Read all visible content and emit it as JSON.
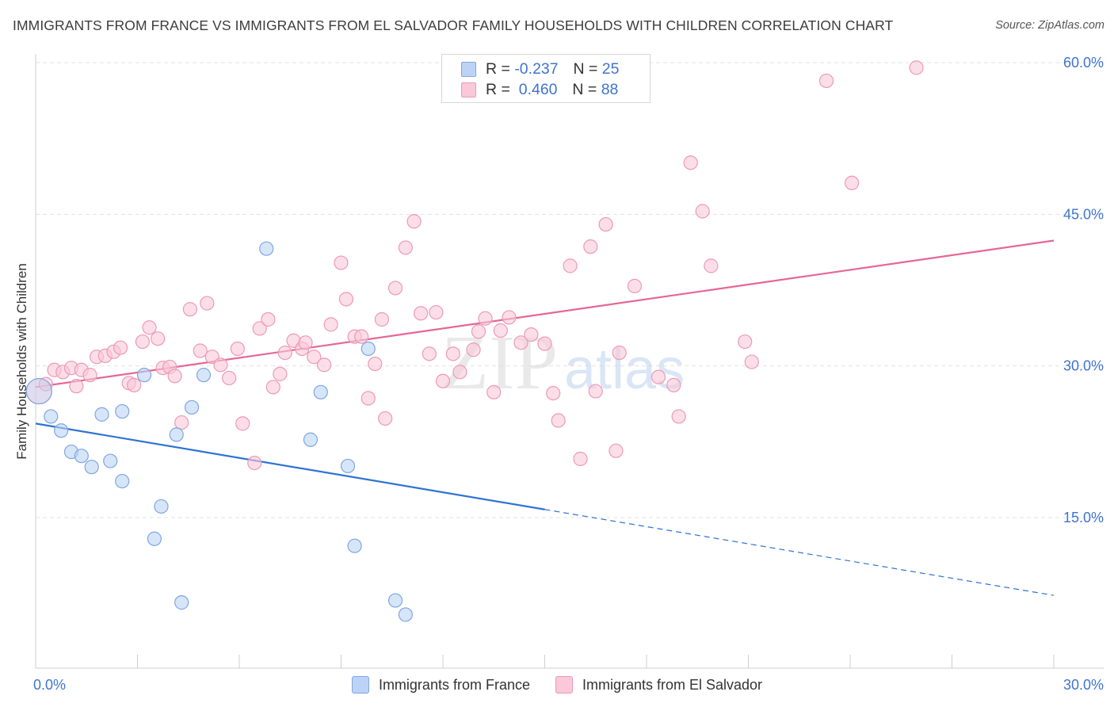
{
  "title": "IMMIGRANTS FROM FRANCE VS IMMIGRANTS FROM EL SALVADOR FAMILY HOUSEHOLDS WITH CHILDREN CORRELATION CHART",
  "source": "Source: ZipAtlas.com",
  "legend_top": [
    {
      "r_label": "R =",
      "r_value": "-0.237",
      "n_label": "N =",
      "n_value": "25"
    },
    {
      "r_label": "R =",
      "r_value": " 0.460",
      "n_label": "N =",
      "n_value": "88"
    }
  ],
  "colors": {
    "france_fill": "#bdd3f5",
    "france_stroke": "#7ea7e0",
    "france_line": "#2f72d4",
    "elsalvador_fill": "#fac8d8",
    "elsalvador_stroke": "#ec9ab5",
    "elsalvador_line": "#e46795",
    "tick_label": "#3f74d0",
    "grid": "#e2e2e2"
  },
  "chart_data": {
    "type": "scatter",
    "title": "IMMIGRANTS FROM FRANCE VS IMMIGRANTS FROM EL SALVADOR FAMILY HOUSEHOLDS WITH CHILDREN CORRELATION CHART",
    "xlabel": "",
    "ylabel": "Family Households with Children",
    "xlim": [
      0,
      30
    ],
    "ylim": [
      0,
      61.5
    ],
    "x_tick_labels": [
      {
        "value": 0,
        "label": "0.0%"
      },
      {
        "value": 30,
        "label": "30.0%"
      }
    ],
    "y_ticks": [
      {
        "value": 15,
        "label": "15.0%"
      },
      {
        "value": 30,
        "label": "30.0%"
      },
      {
        "value": 45,
        "label": "45.0%"
      },
      {
        "value": 60,
        "label": "60.0%"
      }
    ],
    "grid": true,
    "legend_position": "top-center",
    "series": [
      {
        "name": "Immigrants from France",
        "r": -0.237,
        "n": 25,
        "trend": {
          "x_start": 0,
          "y_start": 24.3,
          "x_solid_end": 15,
          "x_end": 30,
          "y_end": 7.3
        },
        "points": [
          {
            "x": 0.1,
            "y": 27.5,
            "big": true
          },
          {
            "x": 0.45,
            "y": 25.0
          },
          {
            "x": 0.75,
            "y": 23.6
          },
          {
            "x": 1.05,
            "y": 21.5
          },
          {
            "x": 1.35,
            "y": 21.1
          },
          {
            "x": 1.65,
            "y": 20.0
          },
          {
            "x": 1.95,
            "y": 25.2
          },
          {
            "x": 2.2,
            "y": 20.6
          },
          {
            "x": 2.55,
            "y": 18.6
          },
          {
            "x": 2.55,
            "y": 25.5
          },
          {
            "x": 3.2,
            "y": 29.1
          },
          {
            "x": 3.5,
            "y": 12.9
          },
          {
            "x": 3.7,
            "y": 16.1
          },
          {
            "x": 4.15,
            "y": 23.2
          },
          {
            "x": 4.3,
            "y": 6.6
          },
          {
            "x": 4.6,
            "y": 25.9
          },
          {
            "x": 4.95,
            "y": 29.1
          },
          {
            "x": 6.8,
            "y": 41.6
          },
          {
            "x": 8.1,
            "y": 22.7
          },
          {
            "x": 8.4,
            "y": 27.4
          },
          {
            "x": 9.2,
            "y": 20.1
          },
          {
            "x": 9.4,
            "y": 12.2
          },
          {
            "x": 9.8,
            "y": 31.7
          },
          {
            "x": 10.6,
            "y": 6.8
          },
          {
            "x": 10.9,
            "y": 5.4
          }
        ]
      },
      {
        "name": "Immigrants from El Salvador",
        "r": 0.46,
        "n": 88,
        "trend": {
          "x_start": 0,
          "y_start": 27.9,
          "x_solid_end": 30,
          "x_end": 30,
          "y_end": 42.4
        },
        "points": [
          {
            "x": 0.1,
            "y": 27.5,
            "big": true
          },
          {
            "x": 0.3,
            "y": 28.2
          },
          {
            "x": 0.55,
            "y": 29.6
          },
          {
            "x": 0.8,
            "y": 29.4
          },
          {
            "x": 1.05,
            "y": 29.8
          },
          {
            "x": 1.2,
            "y": 28.0
          },
          {
            "x": 1.35,
            "y": 29.6
          },
          {
            "x": 1.6,
            "y": 29.1
          },
          {
            "x": 1.8,
            "y": 30.9
          },
          {
            "x": 2.05,
            "y": 31.0
          },
          {
            "x": 2.3,
            "y": 31.4
          },
          {
            "x": 2.5,
            "y": 31.8
          },
          {
            "x": 2.75,
            "y": 28.3
          },
          {
            "x": 2.9,
            "y": 28.1
          },
          {
            "x": 3.15,
            "y": 32.4
          },
          {
            "x": 3.35,
            "y": 33.8
          },
          {
            "x": 3.6,
            "y": 32.7
          },
          {
            "x": 3.75,
            "y": 29.8
          },
          {
            "x": 3.95,
            "y": 29.9
          },
          {
            "x": 4.1,
            "y": 29.0
          },
          {
            "x": 4.3,
            "y": 24.4
          },
          {
            "x": 4.55,
            "y": 35.6
          },
          {
            "x": 4.85,
            "y": 31.5
          },
          {
            "x": 5.05,
            "y": 36.2
          },
          {
            "x": 5.2,
            "y": 30.9
          },
          {
            "x": 5.45,
            "y": 30.1
          },
          {
            "x": 5.7,
            "y": 28.8
          },
          {
            "x": 5.95,
            "y": 31.7
          },
          {
            "x": 6.1,
            "y": 24.3
          },
          {
            "x": 6.45,
            "y": 20.4
          },
          {
            "x": 6.6,
            "y": 33.7
          },
          {
            "x": 6.85,
            "y": 34.6
          },
          {
            "x": 7.0,
            "y": 27.9
          },
          {
            "x": 7.2,
            "y": 29.2
          },
          {
            "x": 7.35,
            "y": 31.3
          },
          {
            "x": 7.6,
            "y": 32.5
          },
          {
            "x": 7.85,
            "y": 31.7
          },
          {
            "x": 7.95,
            "y": 32.3
          },
          {
            "x": 8.2,
            "y": 30.9
          },
          {
            "x": 8.5,
            "y": 30.1
          },
          {
            "x": 8.7,
            "y": 34.1
          },
          {
            "x": 9.0,
            "y": 40.2
          },
          {
            "x": 9.15,
            "y": 36.6
          },
          {
            "x": 9.4,
            "y": 32.9
          },
          {
            "x": 9.6,
            "y": 32.9
          },
          {
            "x": 9.8,
            "y": 26.8
          },
          {
            "x": 10.0,
            "y": 30.2
          },
          {
            "x": 10.2,
            "y": 34.6
          },
          {
            "x": 10.3,
            "y": 24.8
          },
          {
            "x": 10.6,
            "y": 37.7
          },
          {
            "x": 10.9,
            "y": 41.7
          },
          {
            "x": 11.15,
            "y": 44.3
          },
          {
            "x": 11.35,
            "y": 35.2
          },
          {
            "x": 11.6,
            "y": 31.2
          },
          {
            "x": 11.8,
            "y": 35.3
          },
          {
            "x": 12.0,
            "y": 28.5
          },
          {
            "x": 12.3,
            "y": 31.2
          },
          {
            "x": 12.5,
            "y": 29.4
          },
          {
            "x": 12.9,
            "y": 31.6
          },
          {
            "x": 13.05,
            "y": 33.4
          },
          {
            "x": 13.25,
            "y": 34.7
          },
          {
            "x": 13.5,
            "y": 27.4
          },
          {
            "x": 13.7,
            "y": 33.5
          },
          {
            "x": 13.95,
            "y": 34.8
          },
          {
            "x": 14.3,
            "y": 32.3
          },
          {
            "x": 14.6,
            "y": 33.1
          },
          {
            "x": 15.0,
            "y": 32.2
          },
          {
            "x": 15.25,
            "y": 27.3
          },
          {
            "x": 15.4,
            "y": 24.6
          },
          {
            "x": 15.75,
            "y": 39.9
          },
          {
            "x": 16.05,
            "y": 20.8
          },
          {
            "x": 16.35,
            "y": 41.8
          },
          {
            "x": 16.5,
            "y": 27.5
          },
          {
            "x": 16.8,
            "y": 44.0
          },
          {
            "x": 17.1,
            "y": 21.6
          },
          {
            "x": 17.2,
            "y": 31.3
          },
          {
            "x": 17.65,
            "y": 37.9
          },
          {
            "x": 18.35,
            "y": 28.9
          },
          {
            "x": 18.8,
            "y": 28.1
          },
          {
            "x": 18.95,
            "y": 25.0
          },
          {
            "x": 19.3,
            "y": 50.1
          },
          {
            "x": 19.65,
            "y": 45.3
          },
          {
            "x": 19.9,
            "y": 39.9
          },
          {
            "x": 20.9,
            "y": 32.4
          },
          {
            "x": 21.1,
            "y": 30.4
          },
          {
            "x": 23.3,
            "y": 58.2
          },
          {
            "x": 24.05,
            "y": 48.1
          },
          {
            "x": 25.95,
            "y": 59.5
          }
        ]
      }
    ]
  }
}
